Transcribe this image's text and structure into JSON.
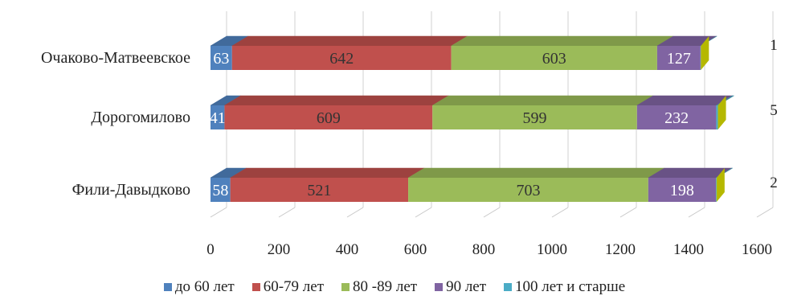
{
  "chart_data": {
    "type": "bar",
    "orientation": "horizontal",
    "stacked": true,
    "style_3d": true,
    "title": "",
    "xlabel": "",
    "ylabel": "",
    "categories": [
      "Очаково-Матвеевское",
      "Дорогомилово",
      "Фили-Давыдково"
    ],
    "series": [
      {
        "name": "до 60 лет",
        "color": "#4F81BD",
        "values": [
          63,
          41,
          58
        ]
      },
      {
        "name": "60-79 лет",
        "color": "#C0504D",
        "values": [
          642,
          609,
          521
        ]
      },
      {
        "name": "80 -89 лет",
        "color": "#9BBB59",
        "values": [
          603,
          599,
          703
        ]
      },
      {
        "name": "90 лет",
        "color": "#8064A2",
        "values": [
          127,
          232,
          198
        ]
      },
      {
        "name": "100 лет и старше",
        "color": "#4BACC6",
        "values": [
          1,
          5,
          2
        ]
      }
    ],
    "xlim": [
      0,
      1600
    ],
    "xticks": [
      "0",
      "200",
      "400",
      "600",
      "800",
      "1000",
      "1200",
      "1400",
      "1600"
    ],
    "grid": true,
    "legend_position": "bottom"
  }
}
